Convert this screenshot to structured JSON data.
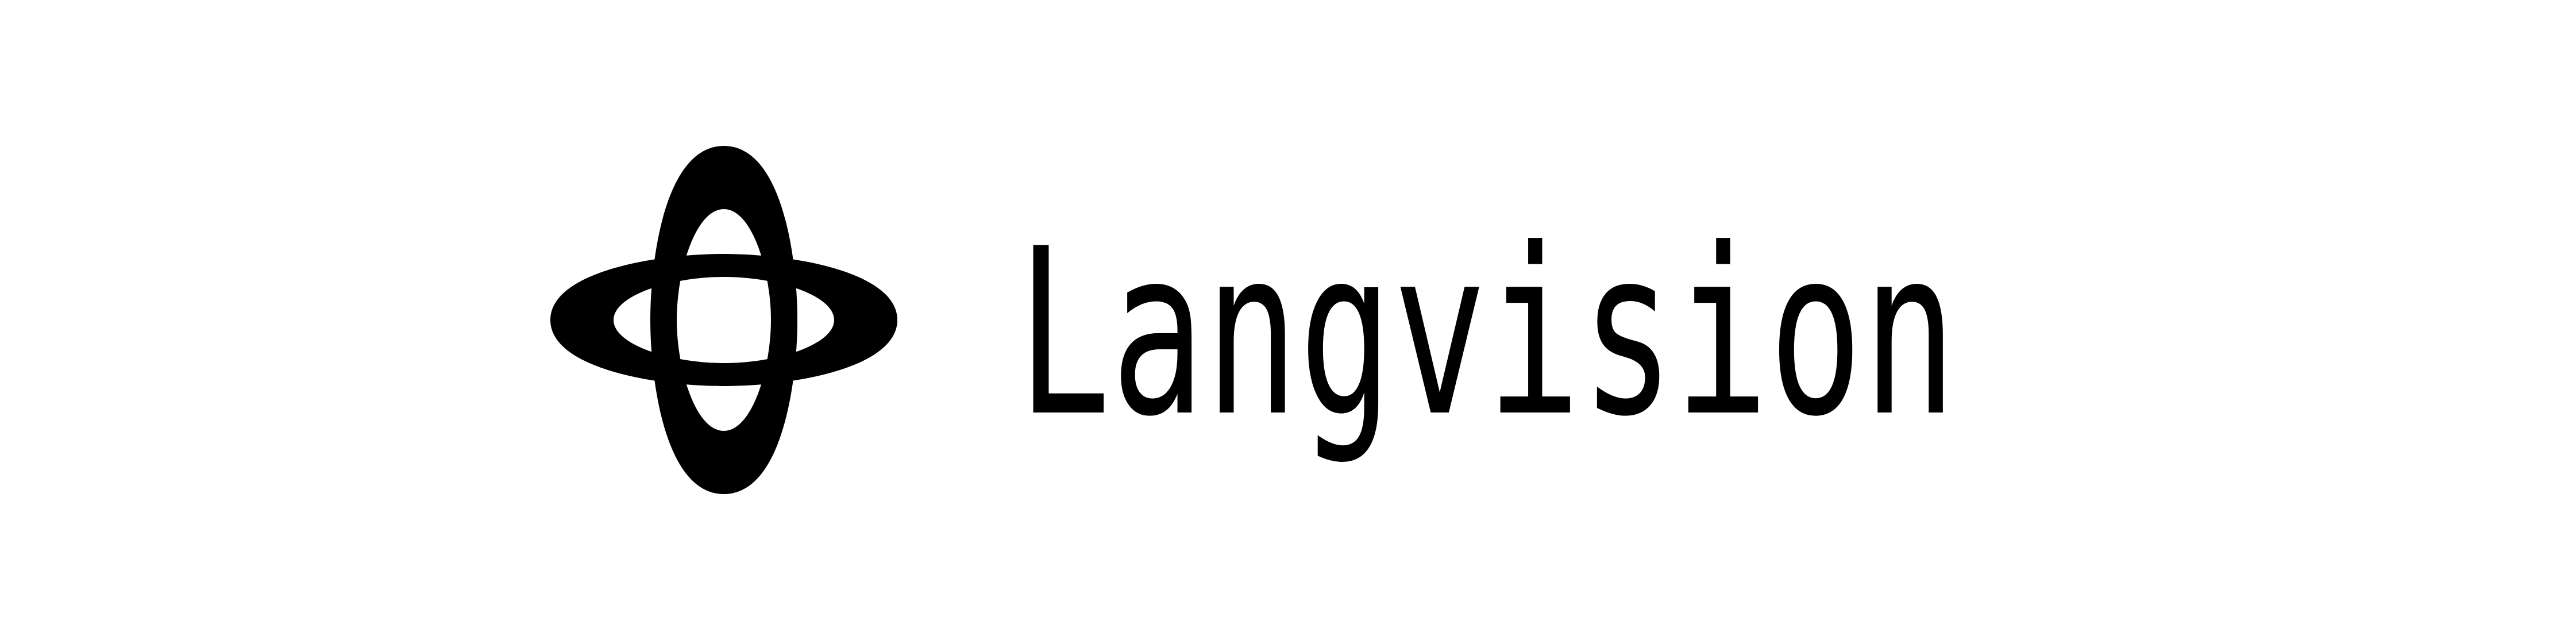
{
  "brand": {
    "name": "Langvision",
    "ink_color": "#000000",
    "background_color": "#ffffff",
    "mark_icon": "orbit-cross-icon"
  }
}
